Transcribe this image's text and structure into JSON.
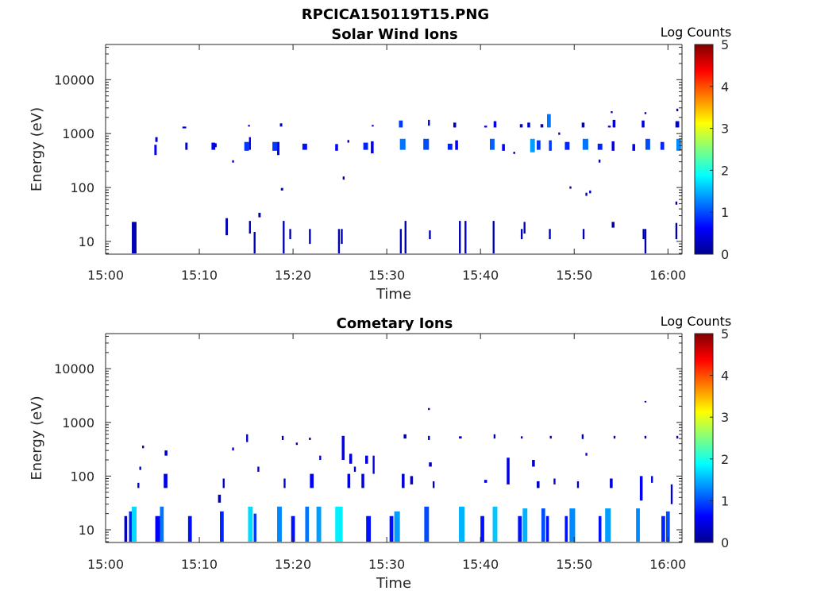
{
  "figure": {
    "title": "RPCICA150119T15.PNG"
  },
  "chart_data": [
    {
      "type": "heatmap",
      "title": "Solar Wind Ions",
      "xlabel": "Time",
      "ylabel": "Energy (eV)",
      "x_ticks": [
        "15:00",
        "15:10",
        "15:20",
        "15:30",
        "15:40",
        "15:50",
        "16:00"
      ],
      "x_range_minutes": [
        0,
        61.5
      ],
      "y_scale": "log",
      "y_range": [
        5.8,
        45000
      ],
      "y_ticks": [
        {
          "value": 10,
          "label": "10"
        },
        {
          "value": 100,
          "label": "100"
        },
        {
          "value": 1000,
          "label": "1000"
        },
        {
          "value": 10000,
          "label": "10000"
        }
      ],
      "colorbar": {
        "title": "Log Counts",
        "range": [
          0,
          5
        ],
        "ticks": [
          "0",
          "1",
          "2",
          "3",
          "4",
          "5"
        ],
        "colormap": "jet"
      },
      "cells": [
        [
          2.8,
          0.3,
          6,
          23,
          0.2
        ],
        [
          3.0,
          0.3,
          6,
          23,
          0.2
        ],
        [
          5.2,
          0.25,
          400,
          620,
          0.6
        ],
        [
          5.3,
          0.25,
          700,
          860,
          0.4
        ],
        [
          8.2,
          0.4,
          1250,
          1350,
          0.3
        ],
        [
          8.5,
          0.25,
          500,
          680,
          0.4
        ],
        [
          11.3,
          0.4,
          500,
          680,
          0.6
        ],
        [
          11.6,
          0.25,
          560,
          660,
          0.3
        ],
        [
          12.8,
          0.25,
          13,
          27,
          0.2
        ],
        [
          13.5,
          0.2,
          290,
          320,
          0.2
        ],
        [
          14.8,
          0.5,
          480,
          700,
          0.9
        ],
        [
          15.3,
          0.2,
          500,
          860,
          0.5
        ],
        [
          15.2,
          0.2,
          1350,
          1450,
          0.3
        ],
        [
          15.3,
          0.2,
          14,
          24,
          0.2
        ],
        [
          15.8,
          0.2,
          6,
          15,
          0.2
        ],
        [
          16.3,
          0.25,
          28,
          34,
          0.2
        ],
        [
          17.8,
          0.5,
          480,
          700,
          0.9
        ],
        [
          18.3,
          0.25,
          400,
          700,
          0.6
        ],
        [
          18.6,
          0.25,
          1350,
          1550,
          0.3
        ],
        [
          18.7,
          0.25,
          88,
          98,
          0.2
        ],
        [
          18.9,
          0.2,
          6,
          24,
          0.2
        ],
        [
          19.6,
          0.2,
          11,
          17,
          0.2
        ],
        [
          21.0,
          0.5,
          500,
          650,
          0.7
        ],
        [
          21.7,
          0.2,
          9,
          17,
          0.2
        ],
        [
          24.5,
          0.3,
          480,
          640,
          0.6
        ],
        [
          24.8,
          0.2,
          6,
          17,
          0.2
        ],
        [
          25.1,
          0.2,
          9,
          17,
          0.2
        ],
        [
          25.3,
          0.2,
          140,
          160,
          0.2
        ],
        [
          25.8,
          0.2,
          680,
          760,
          0.2
        ],
        [
          27.5,
          0.5,
          500,
          680,
          0.8
        ],
        [
          28.3,
          0.3,
          430,
          720,
          0.6
        ],
        [
          28.4,
          0.2,
          1350,
          1450,
          0.3
        ],
        [
          31.3,
          0.4,
          1300,
          1750,
          0.9
        ],
        [
          31.4,
          0.6,
          500,
          800,
          1.2
        ],
        [
          31.4,
          0.2,
          6,
          17,
          0.2
        ],
        [
          31.9,
          0.2,
          6,
          24,
          0.2
        ],
        [
          33.9,
          0.6,
          500,
          800,
          1.0
        ],
        [
          34.4,
          0.2,
          1400,
          1800,
          0.3
        ],
        [
          34.5,
          0.2,
          11,
          16,
          0.2
        ],
        [
          36.5,
          0.5,
          500,
          650,
          0.8
        ],
        [
          37.1,
          0.3,
          1300,
          1600,
          0.3
        ],
        [
          37.3,
          0.3,
          500,
          750,
          0.6
        ],
        [
          37.7,
          0.2,
          6,
          24,
          0.2
        ],
        [
          38.3,
          0.2,
          6,
          24,
          0.2
        ],
        [
          40.4,
          0.3,
          1300,
          1400,
          0.4
        ],
        [
          41.0,
          0.5,
          500,
          800,
          1.1
        ],
        [
          41.4,
          0.3,
          1300,
          1700,
          0.5
        ],
        [
          41.3,
          0.2,
          6,
          24,
          0.2
        ],
        [
          42.3,
          0.3,
          480,
          640,
          0.6
        ],
        [
          43.5,
          0.2,
          420,
          460,
          0.2
        ],
        [
          44.2,
          0.3,
          1300,
          1500,
          0.4
        ],
        [
          44.3,
          0.2,
          11,
          17,
          0.2
        ],
        [
          44.6,
          0.2,
          14,
          23,
          0.2
        ],
        [
          45.0,
          0.3,
          1300,
          1600,
          0.4
        ],
        [
          45.3,
          0.5,
          450,
          800,
          1.4
        ],
        [
          46.0,
          0.4,
          500,
          750,
          0.9
        ],
        [
          46.4,
          0.3,
          1300,
          1500,
          0.3
        ],
        [
          47.1,
          0.4,
          1300,
          2300,
          1.2
        ],
        [
          47.3,
          0.3,
          480,
          750,
          0.9
        ],
        [
          47.3,
          0.2,
          11,
          17,
          0.2
        ],
        [
          48.3,
          0.2,
          950,
          1050,
          0.2
        ],
        [
          49.5,
          0.2,
          95,
          105,
          0.2
        ],
        [
          49.0,
          0.5,
          500,
          700,
          0.8
        ],
        [
          50.8,
          0.3,
          1300,
          1600,
          0.3
        ],
        [
          50.9,
          0.6,
          500,
          800,
          1.2
        ],
        [
          50.9,
          0.2,
          11,
          17,
          0.2
        ],
        [
          51.2,
          0.2,
          70,
          80,
          0.2
        ],
        [
          51.6,
          0.2,
          78,
          88,
          0.2
        ],
        [
          52.5,
          0.5,
          500,
          650,
          0.8
        ],
        [
          52.6,
          0.2,
          290,
          330,
          0.2
        ],
        [
          53.6,
          0.3,
          1300,
          1400,
          0.4
        ],
        [
          54.1,
          0.3,
          1300,
          1800,
          0.4
        ],
        [
          54.0,
          0.3,
          480,
          720,
          0.6
        ],
        [
          53.9,
          0.2,
          2400,
          2600,
          0.2
        ],
        [
          54.0,
          0.3,
          18,
          23,
          0.2
        ],
        [
          56.2,
          0.3,
          480,
          640,
          0.6
        ],
        [
          57.2,
          0.3,
          1300,
          1750,
          0.5
        ],
        [
          57.6,
          0.5,
          500,
          800,
          1.0
        ],
        [
          57.5,
          0.2,
          2300,
          2500,
          0.2
        ],
        [
          57.3,
          0.2,
          11,
          17,
          0.2
        ],
        [
          57.5,
          0.2,
          6,
          17,
          0.2
        ],
        [
          59.2,
          0.4,
          500,
          700,
          0.8
        ],
        [
          60.8,
          0.4,
          1300,
          1700,
          0.4
        ],
        [
          60.9,
          0.5,
          480,
          800,
          1.3
        ],
        [
          60.9,
          0.2,
          2600,
          2900,
          0.2
        ],
        [
          60.8,
          0.2,
          48,
          55,
          0.2
        ],
        [
          60.8,
          0.2,
          11,
          22,
          0.2
        ]
      ]
    },
    {
      "type": "heatmap",
      "title": "Cometary Ions",
      "xlabel": "Time",
      "ylabel": "Energy (eV)",
      "x_ticks": [
        "15:00",
        "15:10",
        "15:20",
        "15:30",
        "15:40",
        "15:50",
        "16:00"
      ],
      "x_range_minutes": [
        0,
        61.5
      ],
      "y_scale": "log",
      "y_range": [
        5.8,
        45000
      ],
      "y_ticks": [
        {
          "value": 10,
          "label": "10"
        },
        {
          "value": 100,
          "label": "100"
        },
        {
          "value": 1000,
          "label": "1000"
        },
        {
          "value": 10000,
          "label": "10000"
        }
      ],
      "colorbar": {
        "title": "Log Counts",
        "range": [
          0,
          5
        ],
        "ticks": [
          "0",
          "1",
          "2",
          "3",
          "4",
          "5"
        ],
        "colormap": "jet"
      },
      "cells": [
        [
          2.0,
          0.3,
          6,
          18,
          0.4
        ],
        [
          2.5,
          0.3,
          6,
          22,
          0.8
        ],
        [
          2.8,
          0.5,
          6,
          27,
          1.7
        ],
        [
          3.4,
          0.2,
          60,
          75,
          0.3
        ],
        [
          3.6,
          0.2,
          130,
          150,
          0.3
        ],
        [
          3.9,
          0.2,
          330,
          370,
          0.3
        ],
        [
          5.3,
          0.5,
          6,
          18,
          0.6
        ],
        [
          5.8,
          0.4,
          6,
          27,
          1.2
        ],
        [
          6.2,
          0.4,
          60,
          110,
          0.5
        ],
        [
          6.3,
          0.3,
          240,
          300,
          0.3
        ],
        [
          8.8,
          0.4,
          6,
          18,
          0.7
        ],
        [
          12.0,
          0.3,
          32,
          45,
          0.3
        ],
        [
          12.2,
          0.4,
          6,
          22,
          0.8
        ],
        [
          12.5,
          0.2,
          60,
          90,
          0.3
        ],
        [
          13.5,
          0.2,
          300,
          340,
          0.3
        ],
        [
          15.0,
          0.2,
          430,
          600,
          0.3
        ],
        [
          15.2,
          0.5,
          6,
          27,
          1.7
        ],
        [
          15.8,
          0.3,
          6,
          20,
          0.9
        ],
        [
          16.2,
          0.2,
          120,
          150,
          0.3
        ],
        [
          18.3,
          0.5,
          6,
          27,
          1.3
        ],
        [
          18.8,
          0.2,
          470,
          560,
          0.3
        ],
        [
          19.0,
          0.2,
          60,
          90,
          0.3
        ],
        [
          19.8,
          0.4,
          6,
          18,
          0.7
        ],
        [
          20.3,
          0.2,
          380,
          420,
          0.3
        ],
        [
          21.3,
          0.4,
          6,
          27,
          1.2
        ],
        [
          21.8,
          0.4,
          60,
          110,
          0.6
        ],
        [
          21.7,
          0.2,
          470,
          520,
          0.3
        ],
        [
          22.5,
          0.5,
          6,
          27,
          1.4
        ],
        [
          22.8,
          0.2,
          200,
          240,
          0.3
        ],
        [
          24.5,
          0.8,
          6,
          27,
          1.8
        ],
        [
          25.2,
          0.3,
          200,
          560,
          0.6
        ],
        [
          25.8,
          0.3,
          60,
          110,
          0.5
        ],
        [
          26.0,
          0.3,
          170,
          260,
          0.4
        ],
        [
          26.5,
          0.2,
          120,
          150,
          0.3
        ],
        [
          27.3,
          0.3,
          60,
          110,
          0.5
        ],
        [
          27.7,
          0.3,
          170,
          240,
          0.4
        ],
        [
          28.5,
          0.2,
          110,
          240,
          0.4
        ],
        [
          27.8,
          0.5,
          6,
          18,
          0.7
        ],
        [
          30.3,
          0.4,
          6,
          18,
          0.7
        ],
        [
          30.8,
          0.6,
          6,
          22,
          1.4
        ],
        [
          31.6,
          0.3,
          60,
          110,
          0.4
        ],
        [
          31.8,
          0.3,
          500,
          600,
          0.3
        ],
        [
          32.5,
          0.3,
          70,
          100,
          0.4
        ],
        [
          34.0,
          0.5,
          6,
          27,
          1.0
        ],
        [
          34.4,
          0.2,
          1700,
          1850,
          0.3
        ],
        [
          34.4,
          0.2,
          470,
          560,
          0.3
        ],
        [
          34.5,
          0.3,
          150,
          180,
          0.3
        ],
        [
          34.9,
          0.2,
          60,
          80,
          0.3
        ],
        [
          37.7,
          0.6,
          6,
          27,
          1.5
        ],
        [
          37.7,
          0.3,
          500,
          550,
          0.3
        ],
        [
          40.0,
          0.4,
          6,
          18,
          0.7
        ],
        [
          40.4,
          0.3,
          75,
          85,
          0.4
        ],
        [
          41.3,
          0.5,
          6,
          27,
          1.6
        ],
        [
          41.4,
          0.2,
          500,
          600,
          0.3
        ],
        [
          42.8,
          0.3,
          70,
          220,
          0.5
        ],
        [
          44.0,
          0.4,
          6,
          18,
          0.7
        ],
        [
          44.5,
          0.5,
          6,
          25,
          1.5
        ],
        [
          44.3,
          0.2,
          500,
          550,
          0.3
        ],
        [
          45.5,
          0.3,
          150,
          200,
          0.3
        ],
        [
          46.0,
          0.3,
          60,
          80,
          0.3
        ],
        [
          46.5,
          0.4,
          6,
          25,
          1.0
        ],
        [
          47.0,
          0.3,
          6,
          18,
          0.7
        ],
        [
          47.4,
          0.2,
          500,
          560,
          0.3
        ],
        [
          47.8,
          0.2,
          70,
          90,
          0.3
        ],
        [
          49.0,
          0.3,
          6,
          18,
          0.7
        ],
        [
          49.5,
          0.6,
          6,
          25,
          1.3
        ],
        [
          50.3,
          0.2,
          60,
          80,
          0.3
        ],
        [
          50.8,
          0.2,
          490,
          600,
          0.3
        ],
        [
          51.2,
          0.2,
          240,
          270,
          0.3
        ],
        [
          52.6,
          0.3,
          6,
          18,
          0.7
        ],
        [
          53.3,
          0.6,
          6,
          25,
          1.4
        ],
        [
          53.8,
          0.3,
          60,
          90,
          0.4
        ],
        [
          54.2,
          0.2,
          500,
          560,
          0.3
        ],
        [
          56.6,
          0.4,
          6,
          25,
          1.3
        ],
        [
          57.0,
          0.3,
          35,
          100,
          0.6
        ],
        [
          57.5,
          0.2,
          500,
          560,
          0.3
        ],
        [
          57.5,
          0.2,
          2350,
          2500,
          0.3
        ],
        [
          58.2,
          0.2,
          75,
          100,
          0.4
        ],
        [
          59.3,
          0.4,
          6,
          18,
          0.8
        ],
        [
          59.8,
          0.4,
          6,
          22,
          1.0
        ],
        [
          60.3,
          0.2,
          30,
          70,
          0.4
        ],
        [
          60.9,
          0.2,
          500,
          560,
          0.3
        ]
      ]
    }
  ]
}
